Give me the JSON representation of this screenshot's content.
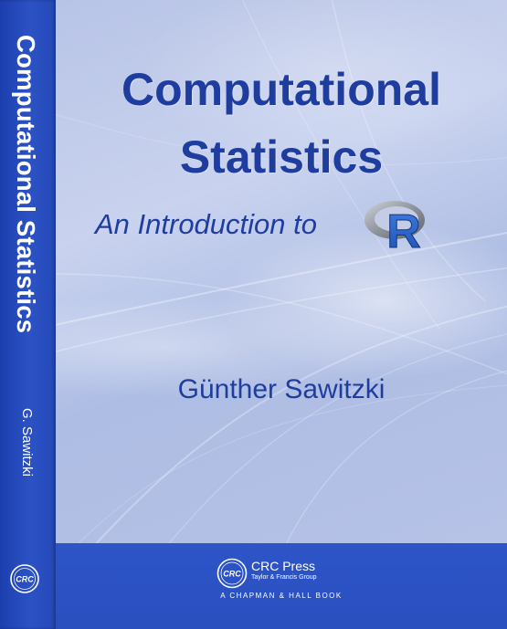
{
  "cover": {
    "title_line1": "Computational",
    "title_line2": "Statistics",
    "subtitle": "An Introduction to",
    "author": "Günther Sawitzki",
    "r_logo_letter": "R"
  },
  "spine": {
    "title": "Computational Statistics",
    "author": "G. Sawitzki",
    "logo_text": "CRC"
  },
  "publisher": {
    "logo_text": "CRC",
    "name": "CRC Press",
    "group": "Taylor & Francis Group",
    "imprint": "A CHAPMAN & HALL BOOK"
  },
  "colors": {
    "title_blue": "#1f3d9e",
    "spine_blue": "#2548b8",
    "band_blue": "#2d55c8",
    "r_logo_gray": "#8a8f99",
    "r_logo_ring": "#3a6fd1"
  }
}
